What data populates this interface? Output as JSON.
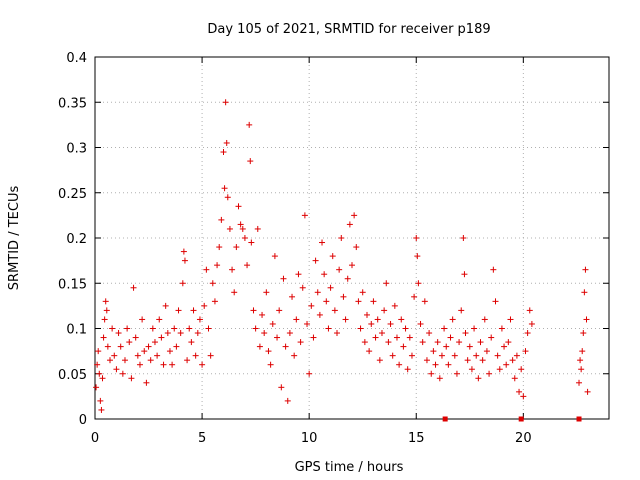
{
  "chart_data": {
    "type": "scatter",
    "title": "Day 105 of 2021, SRMTID for receiver p189",
    "xlabel": "GPS time / hours",
    "ylabel": "SRMTID / TECUs",
    "xlim": [
      0,
      24
    ],
    "ylim": [
      0,
      0.4
    ],
    "grid": true,
    "marker": "+",
    "color": "#dd0000",
    "x_ticks": [
      {
        "value": 0,
        "label": "0"
      },
      {
        "value": 5,
        "label": "5"
      },
      {
        "value": 10,
        "label": "10"
      },
      {
        "value": 15,
        "label": "15"
      },
      {
        "value": 20,
        "label": "20"
      }
    ],
    "y_ticks": [
      {
        "value": 0,
        "label": "0"
      },
      {
        "value": 0.05,
        "label": "0.05"
      },
      {
        "value": 0.1,
        "label": "0.1"
      },
      {
        "value": 0.15,
        "label": "0.15"
      },
      {
        "value": 0.2,
        "label": "0.2"
      },
      {
        "value": 0.25,
        "label": "0.25"
      },
      {
        "value": 0.3,
        "label": "0.3"
      },
      {
        "value": 0.35,
        "label": "0.35"
      },
      {
        "value": 0.4,
        "label": "0.4"
      }
    ],
    "series": [
      {
        "name": "SRMTID",
        "points": [
          [
            0.05,
            0.035
          ],
          [
            0.1,
            0.06
          ],
          [
            0.15,
            0.075
          ],
          [
            0.2,
            0.05
          ],
          [
            0.25,
            0.02
          ],
          [
            0.3,
            0.01
          ],
          [
            0.35,
            0.045
          ],
          [
            0.4,
            0.09
          ],
          [
            0.45,
            0.11
          ],
          [
            0.5,
            0.13
          ],
          [
            0.55,
            0.12
          ],
          [
            0.6,
            0.08
          ],
          [
            0.7,
            0.065
          ],
          [
            0.8,
            0.1
          ],
          [
            0.9,
            0.07
          ],
          [
            1.0,
            0.055
          ],
          [
            1.1,
            0.095
          ],
          [
            1.2,
            0.08
          ],
          [
            1.3,
            0.05
          ],
          [
            1.4,
            0.065
          ],
          [
            1.5,
            0.1
          ],
          [
            1.6,
            0.085
          ],
          [
            1.7,
            0.045
          ],
          [
            1.8,
            0.145
          ],
          [
            1.9,
            0.09
          ],
          [
            2.0,
            0.07
          ],
          [
            2.1,
            0.06
          ],
          [
            2.2,
            0.11
          ],
          [
            2.3,
            0.075
          ],
          [
            2.4,
            0.04
          ],
          [
            2.5,
            0.08
          ],
          [
            2.6,
            0.065
          ],
          [
            2.7,
            0.1
          ],
          [
            2.8,
            0.085
          ],
          [
            2.9,
            0.07
          ],
          [
            3.0,
            0.11
          ],
          [
            3.1,
            0.09
          ],
          [
            3.2,
            0.06
          ],
          [
            3.3,
            0.125
          ],
          [
            3.4,
            0.095
          ],
          [
            3.5,
            0.075
          ],
          [
            3.6,
            0.06
          ],
          [
            3.7,
            0.1
          ],
          [
            3.8,
            0.08
          ],
          [
            3.9,
            0.12
          ],
          [
            4.0,
            0.095
          ],
          [
            4.1,
            0.15
          ],
          [
            4.15,
            0.185
          ],
          [
            4.2,
            0.175
          ],
          [
            4.3,
            0.065
          ],
          [
            4.4,
            0.1
          ],
          [
            4.5,
            0.085
          ],
          [
            4.6,
            0.12
          ],
          [
            4.7,
            0.07
          ],
          [
            4.8,
            0.095
          ],
          [
            4.9,
            0.11
          ],
          [
            5.0,
            0.06
          ],
          [
            5.1,
            0.125
          ],
          [
            5.2,
            0.165
          ],
          [
            5.3,
            0.1
          ],
          [
            5.4,
            0.07
          ],
          [
            5.5,
            0.15
          ],
          [
            5.6,
            0.13
          ],
          [
            5.7,
            0.17
          ],
          [
            5.8,
            0.19
          ],
          [
            5.9,
            0.22
          ],
          [
            6.0,
            0.295
          ],
          [
            6.05,
            0.255
          ],
          [
            6.1,
            0.35
          ],
          [
            6.15,
            0.305
          ],
          [
            6.2,
            0.245
          ],
          [
            6.3,
            0.21
          ],
          [
            6.4,
            0.165
          ],
          [
            6.5,
            0.14
          ],
          [
            6.6,
            0.19
          ],
          [
            6.7,
            0.235
          ],
          [
            6.8,
            0.215
          ],
          [
            6.9,
            0.21
          ],
          [
            7.0,
            0.2
          ],
          [
            7.1,
            0.17
          ],
          [
            7.2,
            0.325
          ],
          [
            7.25,
            0.285
          ],
          [
            7.3,
            0.195
          ],
          [
            7.4,
            0.12
          ],
          [
            7.5,
            0.1
          ],
          [
            7.6,
            0.21
          ],
          [
            7.7,
            0.08
          ],
          [
            7.8,
            0.115
          ],
          [
            7.9,
            0.095
          ],
          [
            8.0,
            0.14
          ],
          [
            8.1,
            0.075
          ],
          [
            8.2,
            0.06
          ],
          [
            8.3,
            0.105
          ],
          [
            8.4,
            0.18
          ],
          [
            8.5,
            0.09
          ],
          [
            8.6,
            0.12
          ],
          [
            8.7,
            0.035
          ],
          [
            8.8,
            0.155
          ],
          [
            8.9,
            0.08
          ],
          [
            9.0,
            0.02
          ],
          [
            9.1,
            0.095
          ],
          [
            9.2,
            0.135
          ],
          [
            9.3,
            0.07
          ],
          [
            9.4,
            0.11
          ],
          [
            9.5,
            0.16
          ],
          [
            9.6,
            0.085
          ],
          [
            9.7,
            0.145
          ],
          [
            9.8,
            0.225
          ],
          [
            9.9,
            0.105
          ],
          [
            10.0,
            0.05
          ],
          [
            10.1,
            0.125
          ],
          [
            10.2,
            0.09
          ],
          [
            10.3,
            0.175
          ],
          [
            10.4,
            0.14
          ],
          [
            10.5,
            0.115
          ],
          [
            10.6,
            0.195
          ],
          [
            10.7,
            0.16
          ],
          [
            10.8,
            0.13
          ],
          [
            10.9,
            0.1
          ],
          [
            11.0,
            0.145
          ],
          [
            11.1,
            0.18
          ],
          [
            11.2,
            0.12
          ],
          [
            11.3,
            0.095
          ],
          [
            11.4,
            0.165
          ],
          [
            11.5,
            0.2
          ],
          [
            11.6,
            0.135
          ],
          [
            11.7,
            0.11
          ],
          [
            11.8,
            0.155
          ],
          [
            11.9,
            0.215
          ],
          [
            12.0,
            0.17
          ],
          [
            12.1,
            0.225
          ],
          [
            12.2,
            0.19
          ],
          [
            12.3,
            0.13
          ],
          [
            12.4,
            0.1
          ],
          [
            12.5,
            0.14
          ],
          [
            12.6,
            0.085
          ],
          [
            12.7,
            0.115
          ],
          [
            12.8,
            0.075
          ],
          [
            12.9,
            0.105
          ],
          [
            13.0,
            0.13
          ],
          [
            13.1,
            0.09
          ],
          [
            13.2,
            0.11
          ],
          [
            13.3,
            0.065
          ],
          [
            13.4,
            0.095
          ],
          [
            13.5,
            0.12
          ],
          [
            13.6,
            0.15
          ],
          [
            13.7,
            0.085
          ],
          [
            13.8,
            0.105
          ],
          [
            13.9,
            0.07
          ],
          [
            14.0,
            0.125
          ],
          [
            14.1,
            0.09
          ],
          [
            14.2,
            0.06
          ],
          [
            14.3,
            0.11
          ],
          [
            14.4,
            0.08
          ],
          [
            14.5,
            0.1
          ],
          [
            14.6,
            0.055
          ],
          [
            14.7,
            0.09
          ],
          [
            14.8,
            0.07
          ],
          [
            14.9,
            0.135
          ],
          [
            15.0,
            0.2
          ],
          [
            15.05,
            0.18
          ],
          [
            15.1,
            0.15
          ],
          [
            15.2,
            0.105
          ],
          [
            15.3,
            0.085
          ],
          [
            15.4,
            0.13
          ],
          [
            15.5,
            0.065
          ],
          [
            15.6,
            0.095
          ],
          [
            15.7,
            0.05
          ],
          [
            15.8,
            0.075
          ],
          [
            15.9,
            0.06
          ],
          [
            16.0,
            0.085
          ],
          [
            16.1,
            0.045
          ],
          [
            16.2,
            0.07
          ],
          [
            16.3,
            0.1
          ],
          [
            16.4,
            0.08
          ],
          [
            16.5,
            0.06
          ],
          [
            16.6,
            0.09
          ],
          [
            16.7,
            0.11
          ],
          [
            16.8,
            0.07
          ],
          [
            16.9,
            0.05
          ],
          [
            17.0,
            0.085
          ],
          [
            17.1,
            0.12
          ],
          [
            17.2,
            0.2
          ],
          [
            17.25,
            0.16
          ],
          [
            17.3,
            0.095
          ],
          [
            17.4,
            0.065
          ],
          [
            17.5,
            0.08
          ],
          [
            17.6,
            0.055
          ],
          [
            17.7,
            0.1
          ],
          [
            17.8,
            0.07
          ],
          [
            17.9,
            0.045
          ],
          [
            18.0,
            0.085
          ],
          [
            18.1,
            0.065
          ],
          [
            18.2,
            0.11
          ],
          [
            18.3,
            0.075
          ],
          [
            18.4,
            0.05
          ],
          [
            18.5,
            0.09
          ],
          [
            18.6,
            0.165
          ],
          [
            18.7,
            0.13
          ],
          [
            18.8,
            0.07
          ],
          [
            18.9,
            0.055
          ],
          [
            19.0,
            0.1
          ],
          [
            19.1,
            0.08
          ],
          [
            19.2,
            0.06
          ],
          [
            19.3,
            0.085
          ],
          [
            19.4,
            0.11
          ],
          [
            19.5,
            0.065
          ],
          [
            19.6,
            0.045
          ],
          [
            19.7,
            0.07
          ],
          [
            19.8,
            0.03
          ],
          [
            19.9,
            0.055
          ],
          [
            20.0,
            0.025
          ],
          [
            20.1,
            0.075
          ],
          [
            20.2,
            0.095
          ],
          [
            20.3,
            0.12
          ],
          [
            20.4,
            0.105
          ],
          [
            22.6,
            0.04
          ],
          [
            22.65,
            0.065
          ],
          [
            22.7,
            0.055
          ],
          [
            22.75,
            0.075
          ],
          [
            22.8,
            0.095
          ],
          [
            22.85,
            0.14
          ],
          [
            22.9,
            0.165
          ],
          [
            22.95,
            0.11
          ],
          [
            23.0,
            0.03
          ]
        ]
      },
      {
        "name": "zero-markers",
        "points": [
          [
            16.35,
            0
          ],
          [
            19.9,
            0
          ],
          [
            22.6,
            0
          ]
        ]
      }
    ]
  }
}
